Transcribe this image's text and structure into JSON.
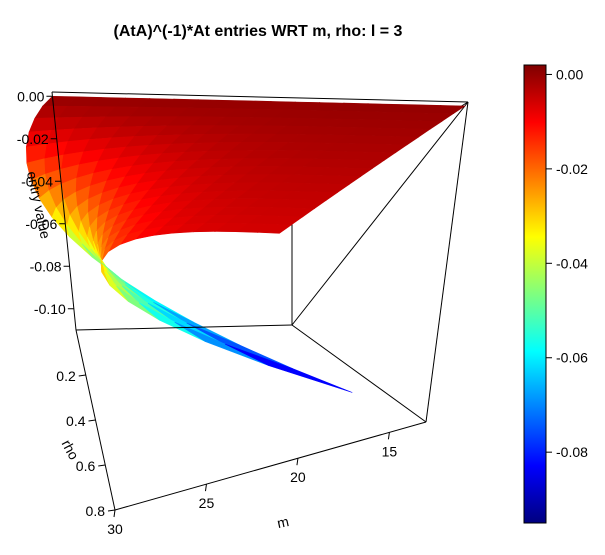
{
  "chart_data": {
    "type": "surface3d",
    "title": "(AtA)^(-1)*At entries WRT m, rho: l = 3",
    "xlabel": "m",
    "ylabel": "rho",
    "zlabel": "entry value",
    "x_ticks": [
      15,
      20,
      25,
      30
    ],
    "y_ticks": [
      0.2,
      0.4,
      0.6,
      0.8
    ],
    "z_ticks": [
      0.0,
      -0.02,
      -0.04,
      -0.06,
      -0.08,
      -0.1
    ],
    "x_tick_labels": [
      "15",
      "20",
      "25",
      "30"
    ],
    "y_tick_labels": [
      "0.2",
      "0.4",
      "0.6",
      "0.8"
    ],
    "z_tick_labels": [
      "0.00",
      "-0.02",
      "-0.04",
      "-0.06",
      "-0.08",
      "-0.10"
    ],
    "xlim": [
      13,
      30
    ],
    "ylim": [
      0.0,
      0.8
    ],
    "zlim": [
      -0.11,
      0.002
    ],
    "m_values": [
      13,
      14,
      15,
      16,
      17,
      18,
      19,
      20,
      21,
      22,
      23,
      24,
      25,
      26,
      27,
      28,
      29,
      30
    ],
    "rho_values": [
      0.0,
      0.05,
      0.1,
      0.15,
      0.2,
      0.25,
      0.3,
      0.35,
      0.4,
      0.45,
      0.5,
      0.55,
      0.6,
      0.65,
      0.7,
      0.75,
      0.8
    ],
    "z_min": -0.095,
    "z_max": 0.0,
    "colorbar": {
      "min": -0.095,
      "max": 0.002,
      "ticks": [
        0.0,
        -0.02,
        -0.04,
        -0.06,
        -0.08
      ],
      "tick_labels": [
        "0.00",
        "-0.02",
        "-0.04",
        "-0.06",
        "-0.08"
      ],
      "colors": [
        "#00007f",
        "#0000ff",
        "#007fff",
        "#00ffff",
        "#7fff7f",
        "#ffff00",
        "#ff7f00",
        "#ff0000",
        "#7f0000"
      ]
    }
  }
}
